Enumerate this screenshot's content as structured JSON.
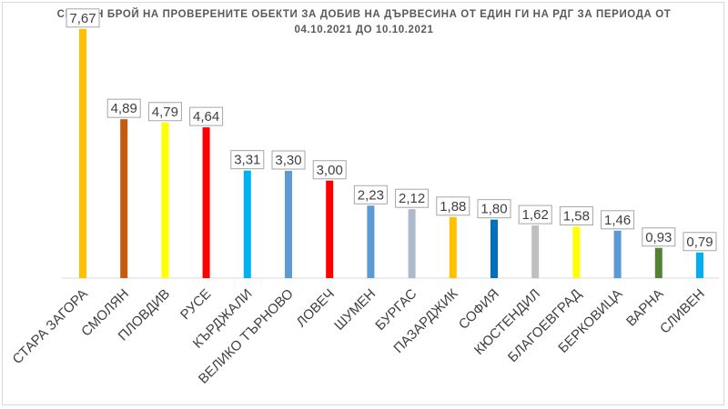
{
  "chart_data": {
    "type": "bar",
    "title_line1": "СРЕДЕН БРОЙ НА ПРОВЕРЕНИТЕ ОБЕКТИ ЗА ДОБИВ НА ДЪРВЕСИНА ОТ ЕДИН ГИ НА РДГ ЗА ПЕРИОДА ОТ",
    "title_line2": "04.10.2021 ДО 10.10.2021",
    "categories": [
      "СТАРА ЗАГОРА",
      "СМОЛЯН",
      "ПЛОВДИВ",
      "РУСЕ",
      "КЪРДЖАЛИ",
      "ВЕЛИКО ТЪРНОВО",
      "ЛОВЕЧ",
      "ШУМЕН",
      "БУРГАС",
      "ПАЗАРДЖИК",
      "СОФИЯ",
      "КЮСТЕНДИЛ",
      "БЛАГОЕВГРАД",
      "БЕРКОВИЦА",
      "ВАРНА",
      "СЛИВЕН"
    ],
    "values": [
      7.67,
      4.89,
      4.79,
      4.64,
      3.31,
      3.3,
      3.0,
      2.23,
      2.12,
      1.88,
      1.8,
      1.62,
      1.58,
      1.46,
      0.93,
      0.79
    ],
    "value_labels": [
      "7,67",
      "4,89",
      "4,79",
      "4,64",
      "3,31",
      "3,30",
      "3,00",
      "2,23",
      "2,12",
      "1,88",
      "1,80",
      "1,62",
      "1,58",
      "1,46",
      "0,93",
      "0,79"
    ],
    "colors": [
      "#FFC000",
      "#C55A11",
      "#FFFF00",
      "#FF0000",
      "#00B0F0",
      "#5B9BD5",
      "#FF0000",
      "#5B9BD5",
      "#ADB9CA",
      "#FFC000",
      "#0070C0",
      "#BFBFBF",
      "#FFFF00",
      "#5B9BD5",
      "#548235",
      "#00B0F0"
    ],
    "ylim": [
      0,
      8
    ],
    "grid": false,
    "legend": "none"
  }
}
